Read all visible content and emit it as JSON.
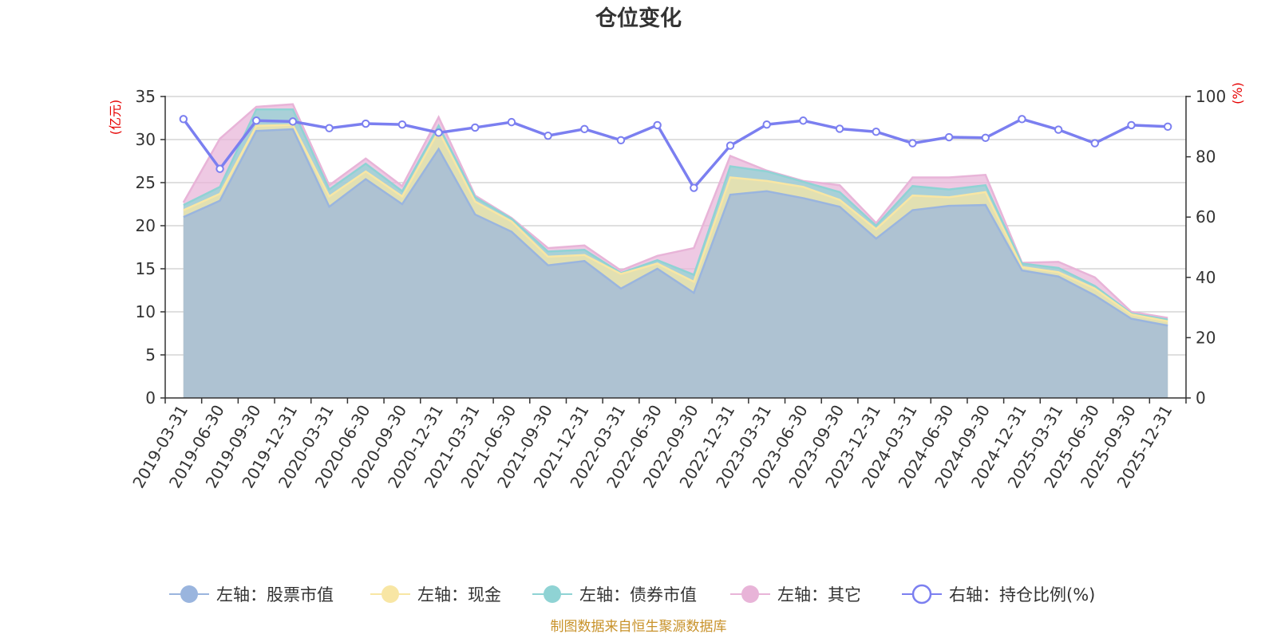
{
  "chart_data": {
    "type": "area",
    "title": "仓位变化",
    "source": "制图数据来自恒生聚源数据库",
    "left_axis": {
      "unit": "(亿元)",
      "range": [
        0,
        35
      ],
      "ticks": [
        "0",
        "5",
        "10",
        "15",
        "20",
        "25",
        "30",
        "35"
      ]
    },
    "right_axis": {
      "unit": "(%)",
      "range": [
        0,
        100
      ],
      "ticks": [
        "0",
        "20",
        "40",
        "60",
        "80",
        "100"
      ]
    },
    "categories": [
      "2019-03-31",
      "2019-06-30",
      "2019-09-30",
      "2019-12-31",
      "2020-03-31",
      "2020-06-30",
      "2020-09-30",
      "2020-12-31",
      "2021-03-31",
      "2021-06-30",
      "2021-09-30",
      "2021-12-31",
      "2022-03-31",
      "2022-06-30",
      "2022-09-30",
      "2022-12-31",
      "2023-03-31",
      "2023-06-30",
      "2023-09-30",
      "2023-12-31",
      "2024-03-31",
      "2024-06-30",
      "2024-09-30",
      "2024-12-31",
      "2025-03-31",
      "2025-06-30",
      "2025-09-30",
      "2025-12-31"
    ],
    "series": [
      {
        "name": "左轴：股票市值",
        "axis": "left",
        "stacked": true,
        "color": "#9ab5de",
        "values": [
          21.0,
          22.9,
          31.0,
          31.2,
          22.2,
          25.4,
          22.5,
          28.9,
          21.3,
          19.3,
          15.4,
          15.9,
          12.7,
          15.0,
          12.2,
          23.6,
          24.0,
          23.2,
          22.2,
          18.5,
          21.8,
          22.3,
          22.4,
          14.8,
          14.1,
          11.9,
          9.2,
          8.4
        ]
      },
      {
        "name": "左轴：现金",
        "axis": "left",
        "stacked": true,
        "color": "#f8e6a4",
        "values": [
          0.8,
          0.8,
          0.6,
          0.5,
          1.2,
          0.9,
          0.9,
          2.1,
          1.5,
          1.2,
          1.0,
          0.7,
          1.7,
          0.6,
          1.3,
          2.0,
          1.2,
          1.3,
          0.8,
          1.1,
          1.7,
          1.0,
          1.5,
          0.4,
          0.5,
          0.8,
          0.5,
          0.5
        ]
      },
      {
        "name": "左轴：债券市值",
        "axis": "left",
        "stacked": true,
        "color": "#8fd3d4",
        "values": [
          0.6,
          0.8,
          1.9,
          1.8,
          0.8,
          0.9,
          0.6,
          0.6,
          0.5,
          0.3,
          0.6,
          0.6,
          0.1,
          0.4,
          0.8,
          1.3,
          1.1,
          0.6,
          0.9,
          0.4,
          1.1,
          0.9,
          0.8,
          0.4,
          0.5,
          0.3,
          0.1,
          0.2
        ]
      },
      {
        "name": "左轴：其它",
        "axis": "left",
        "stacked": true,
        "color": "#e8b4d8",
        "values": [
          0.3,
          5.6,
          0.3,
          0.6,
          0.5,
          0.6,
          0.6,
          1.0,
          0.2,
          0.1,
          0.4,
          0.5,
          0.3,
          0.5,
          3.1,
          1.2,
          0.1,
          0.1,
          0.8,
          0.3,
          1.0,
          1.4,
          1.2,
          0.1,
          0.7,
          1.0,
          0.2,
          0.2
        ]
      },
      {
        "name": "右轴：持仓比例(%)",
        "axis": "right",
        "type": "line",
        "color": "#7b7ff0",
        "values": [
          92.5,
          76.0,
          92.0,
          91.7,
          89.5,
          91.0,
          90.7,
          88.0,
          89.7,
          91.5,
          87.0,
          89.2,
          85.5,
          90.5,
          69.7,
          83.7,
          90.7,
          92.0,
          89.3,
          88.3,
          84.5,
          86.5,
          86.3,
          92.5,
          89.0,
          84.5,
          90.5,
          90.0
        ]
      }
    ],
    "legend_position": "bottom"
  }
}
